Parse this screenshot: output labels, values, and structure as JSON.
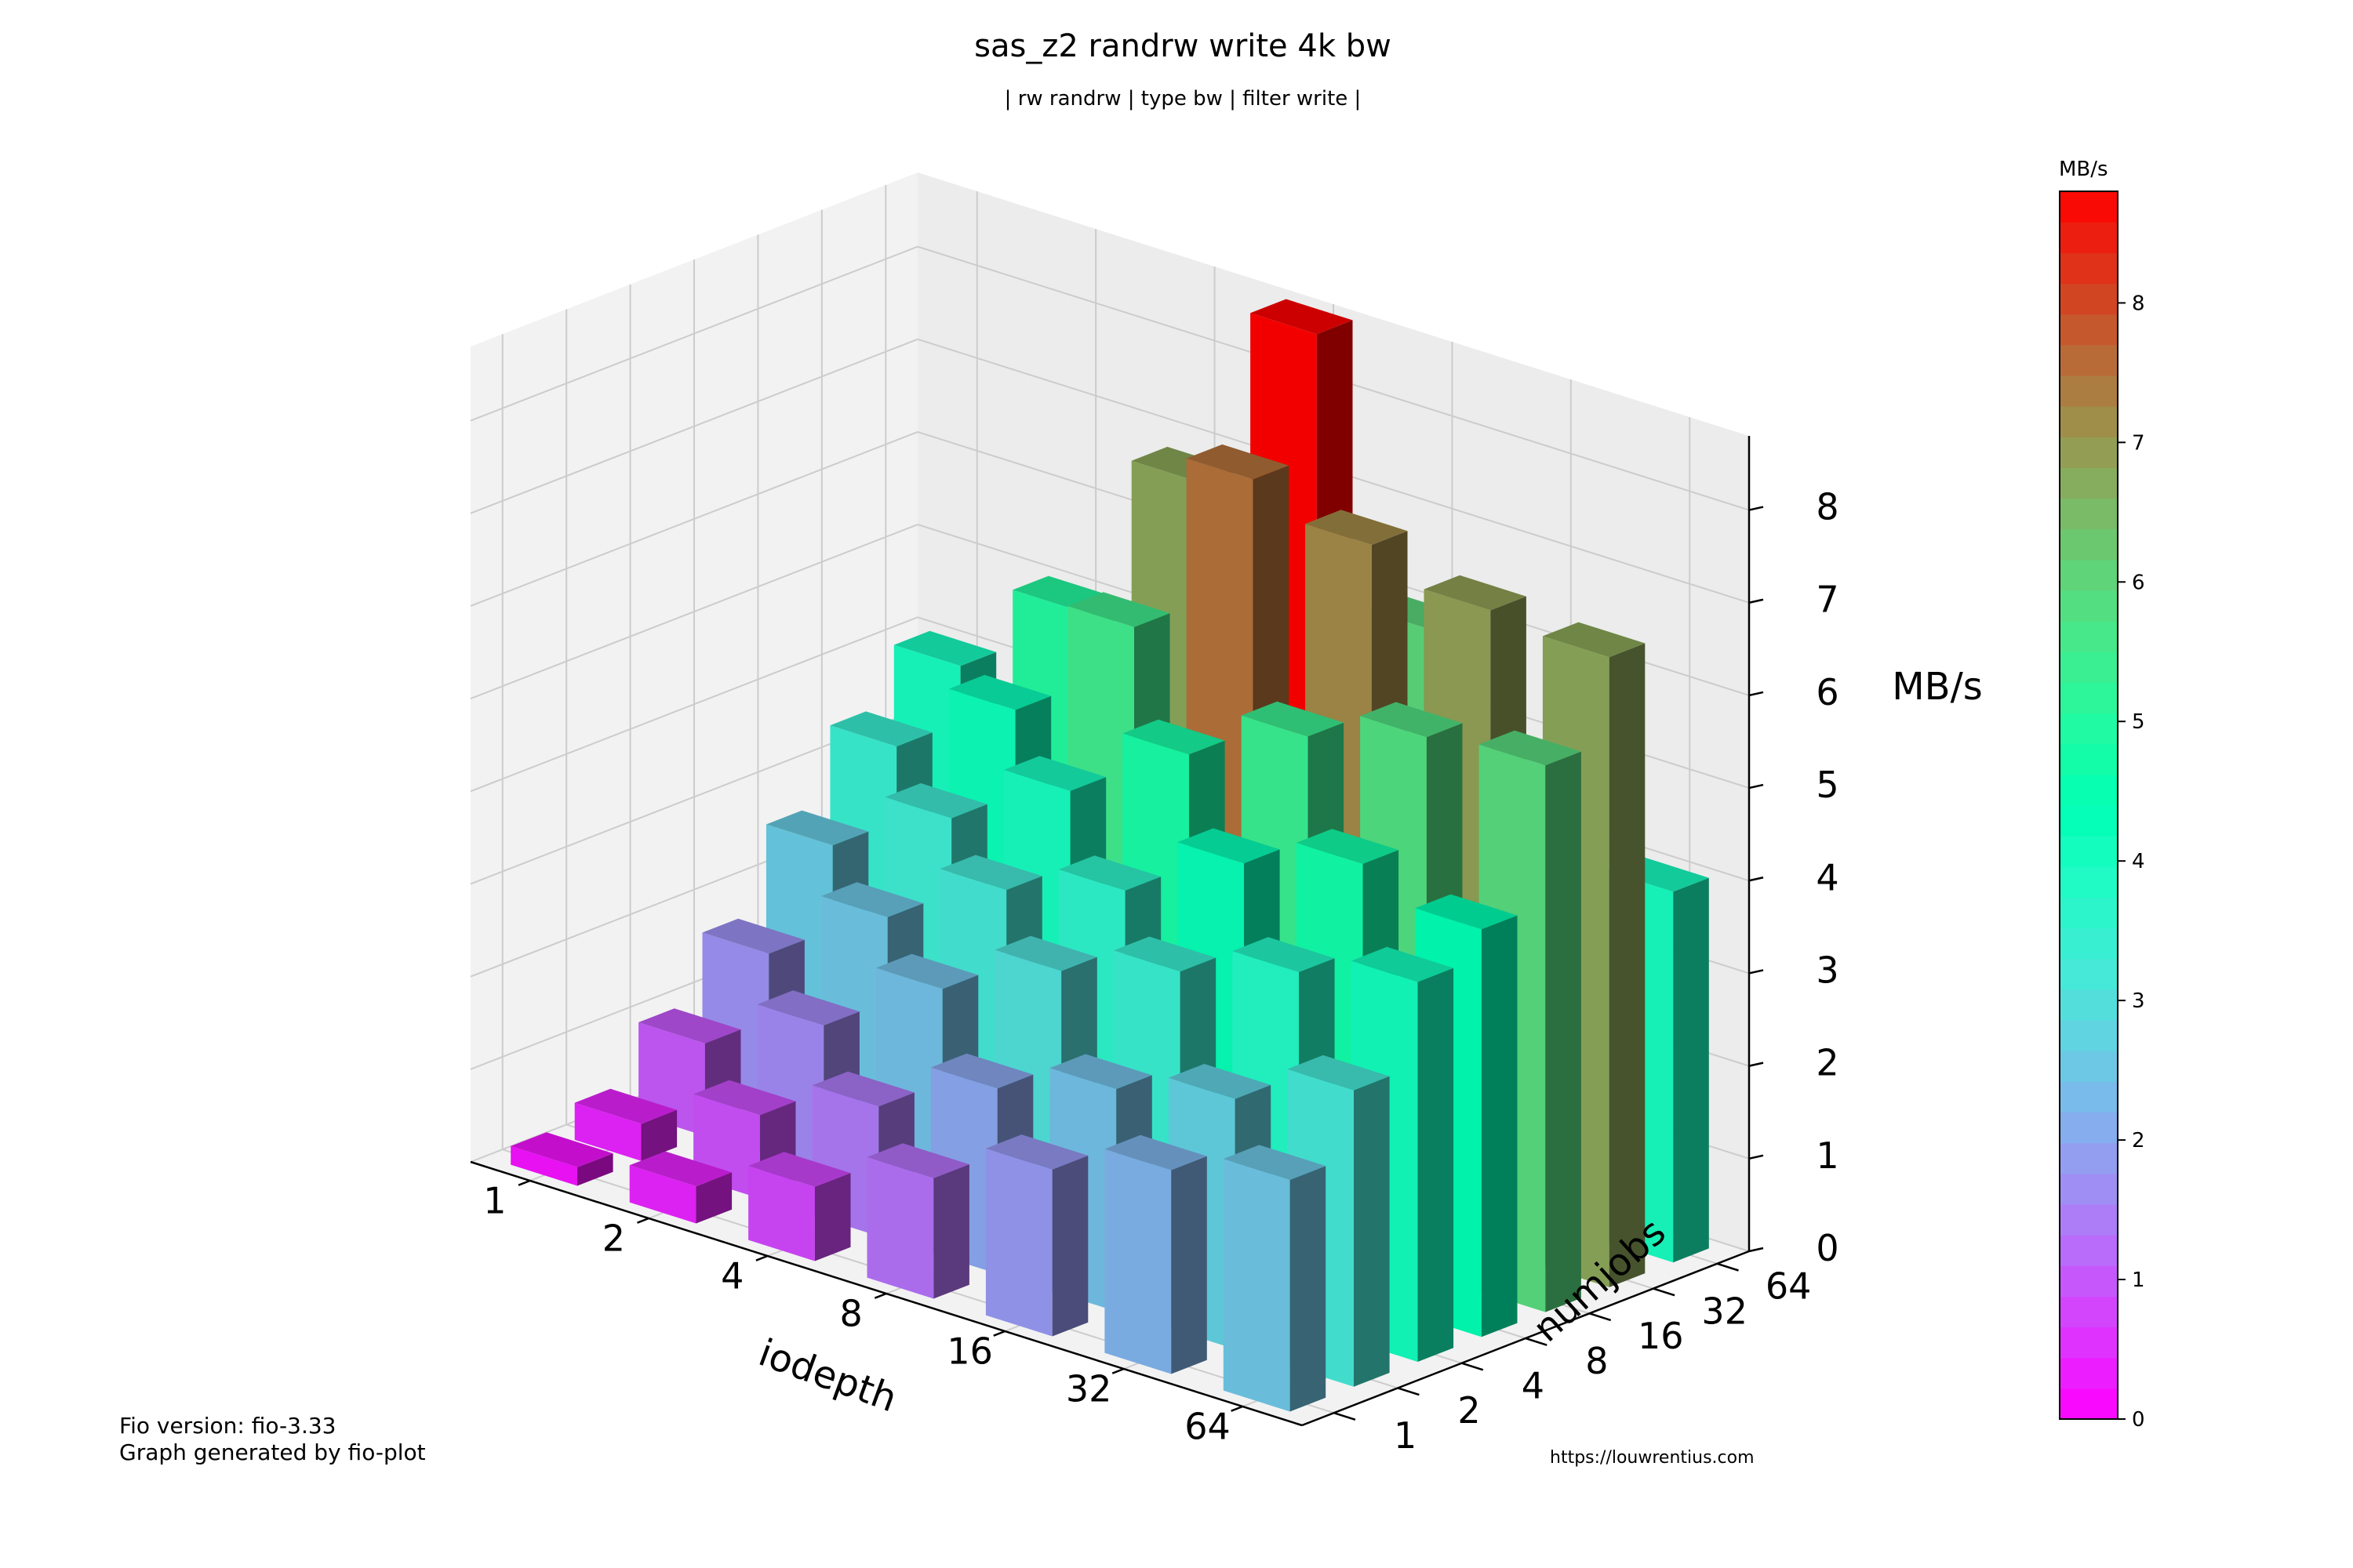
{
  "header": {
    "title": "sas_z2 randrw write 4k bw",
    "subtitle": "| rw randrw | type bw | filter write |"
  },
  "footer": {
    "fio_version": "Fio version: fio-3.33",
    "generated_by": "Graph generated by fio-plot",
    "url": "https://louwrentius.com"
  },
  "colorbar": {
    "label": "MB/s",
    "min": 0,
    "max": 8.8,
    "ticks": [
      "0",
      "1",
      "2",
      "3",
      "4",
      "5",
      "6",
      "7",
      "8"
    ],
    "colormap": "rainbow"
  },
  "chart_data": {
    "type": "bar3d",
    "title": "sas_z2 randrw write 4k bw",
    "subtitle": "| rw randrw | type bw | filter write |",
    "xlabel": "iodepth",
    "ylabel": "numjobs",
    "zlabel": "MB/s",
    "x_categories": [
      "1",
      "2",
      "4",
      "8",
      "16",
      "32",
      "64"
    ],
    "y_categories": [
      "1",
      "2",
      "4",
      "8",
      "16",
      "32",
      "64"
    ],
    "z_ticks": [
      "0",
      "1",
      "2",
      "3",
      "4",
      "5",
      "6",
      "7",
      "8"
    ],
    "zlim": [
      0,
      8.8
    ],
    "grid": true,
    "note": "",
    "values": [
      [
        0.2,
        0.4,
        1.0,
        1.7,
        2.6,
        3.4,
        4.0
      ],
      [
        0.4,
        0.9,
        1.6,
        2.5,
        3.3,
        4.2,
        5.0
      ],
      [
        0.8,
        1.4,
        2.4,
        3.2,
        4.0,
        5.5,
        6.8
      ],
      [
        1.3,
        2.0,
        3.0,
        3.6,
        4.8,
        7.5,
        8.8
      ],
      [
        1.8,
        2.4,
        3.4,
        4.3,
        5.4,
        7.2,
        6.0
      ],
      [
        2.2,
        2.7,
        3.8,
        4.7,
        5.8,
        6.9,
        4.2
      ],
      [
        2.5,
        3.2,
        4.1,
        4.4,
        5.9,
        6.8,
        4.0
      ]
    ]
  }
}
